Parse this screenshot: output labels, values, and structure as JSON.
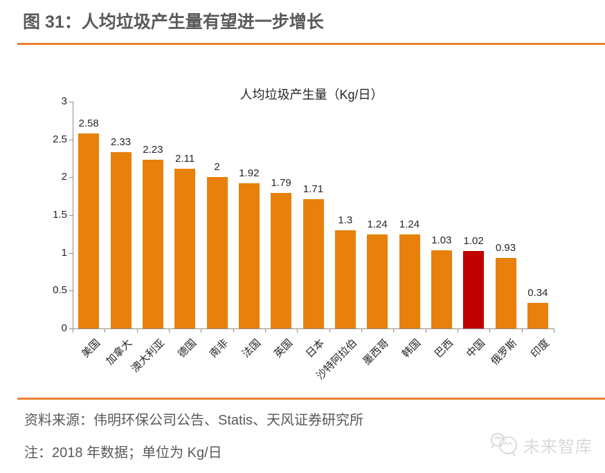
{
  "header": {
    "title": "图 31：人均垃圾产生量有望进一步增长"
  },
  "chart_data": {
    "type": "bar",
    "title": "人均垃圾产生量（Kg/日）",
    "categories": [
      "美国",
      "加拿大",
      "澳大利亚",
      "德国",
      "南非",
      "法国",
      "英国",
      "日本",
      "沙特阿拉伯",
      "墨西哥",
      "韩国",
      "巴西",
      "中国",
      "俄罗斯",
      "印度"
    ],
    "values": [
      2.58,
      2.33,
      2.23,
      2.11,
      2,
      1.92,
      1.79,
      1.71,
      1.3,
      1.24,
      1.24,
      1.03,
      1.02,
      0.93,
      0.34
    ],
    "value_labels": [
      "2.58",
      "2.33",
      "2.23",
      "2.11",
      "2",
      "1.92",
      "1.79",
      "1.71",
      "1.3",
      "1.24",
      "1.24",
      "1.03",
      "1.02",
      "0.93",
      "0.34"
    ],
    "highlight_index": 12,
    "highlight_category": "中国",
    "ylim": [
      0,
      3
    ],
    "ytick_labels": [
      "0",
      "0.5",
      "1",
      "1.5",
      "2",
      "2.5",
      "3"
    ],
    "grid": false,
    "legend": "none",
    "xlabel": "",
    "ylabel": "",
    "bar_color": "#E8800C",
    "highlight_color": "#C00000"
  },
  "footer": {
    "source": "资料来源：伟明环保公司公告、Statis、天风证券研究所",
    "note": "注：2018 年数据；单位为 Kg/日",
    "watermark": "未来智库"
  },
  "colors": {
    "accent_rule": "#ED7D31",
    "title_text": "#595959",
    "chart_text": "#262626",
    "axis": "#8C8C8C",
    "watermark": "#D9D9D9"
  }
}
